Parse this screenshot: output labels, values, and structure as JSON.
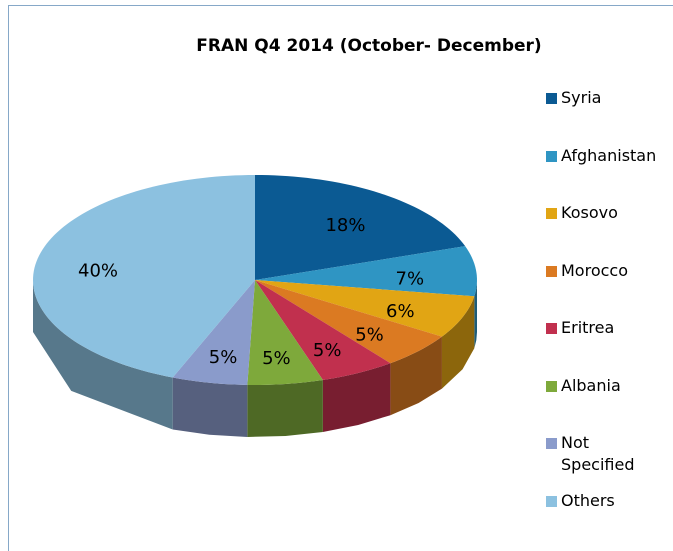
{
  "chart_data": {
    "type": "pie",
    "title": "FRAN Q4 2014 (October- December)",
    "categories": [
      "Syria",
      "Afghanistan",
      "Kosovo",
      "Morocco",
      "Eritrea",
      "Albania",
      "Not Specified",
      "Others"
    ],
    "values": [
      18,
      7,
      6,
      5,
      5,
      5,
      5,
      40
    ],
    "value_labels": [
      "18%",
      "7%",
      "6%",
      "5%",
      "5%",
      "5%",
      "5%",
      "40%"
    ],
    "colors": [
      "#0b5a93",
      "#2f95c3",
      "#e1a514",
      "#db7a22",
      "#c1304e",
      "#7ea93b",
      "#8a9bcb",
      "#8cc1e0"
    ],
    "legend": "right"
  }
}
